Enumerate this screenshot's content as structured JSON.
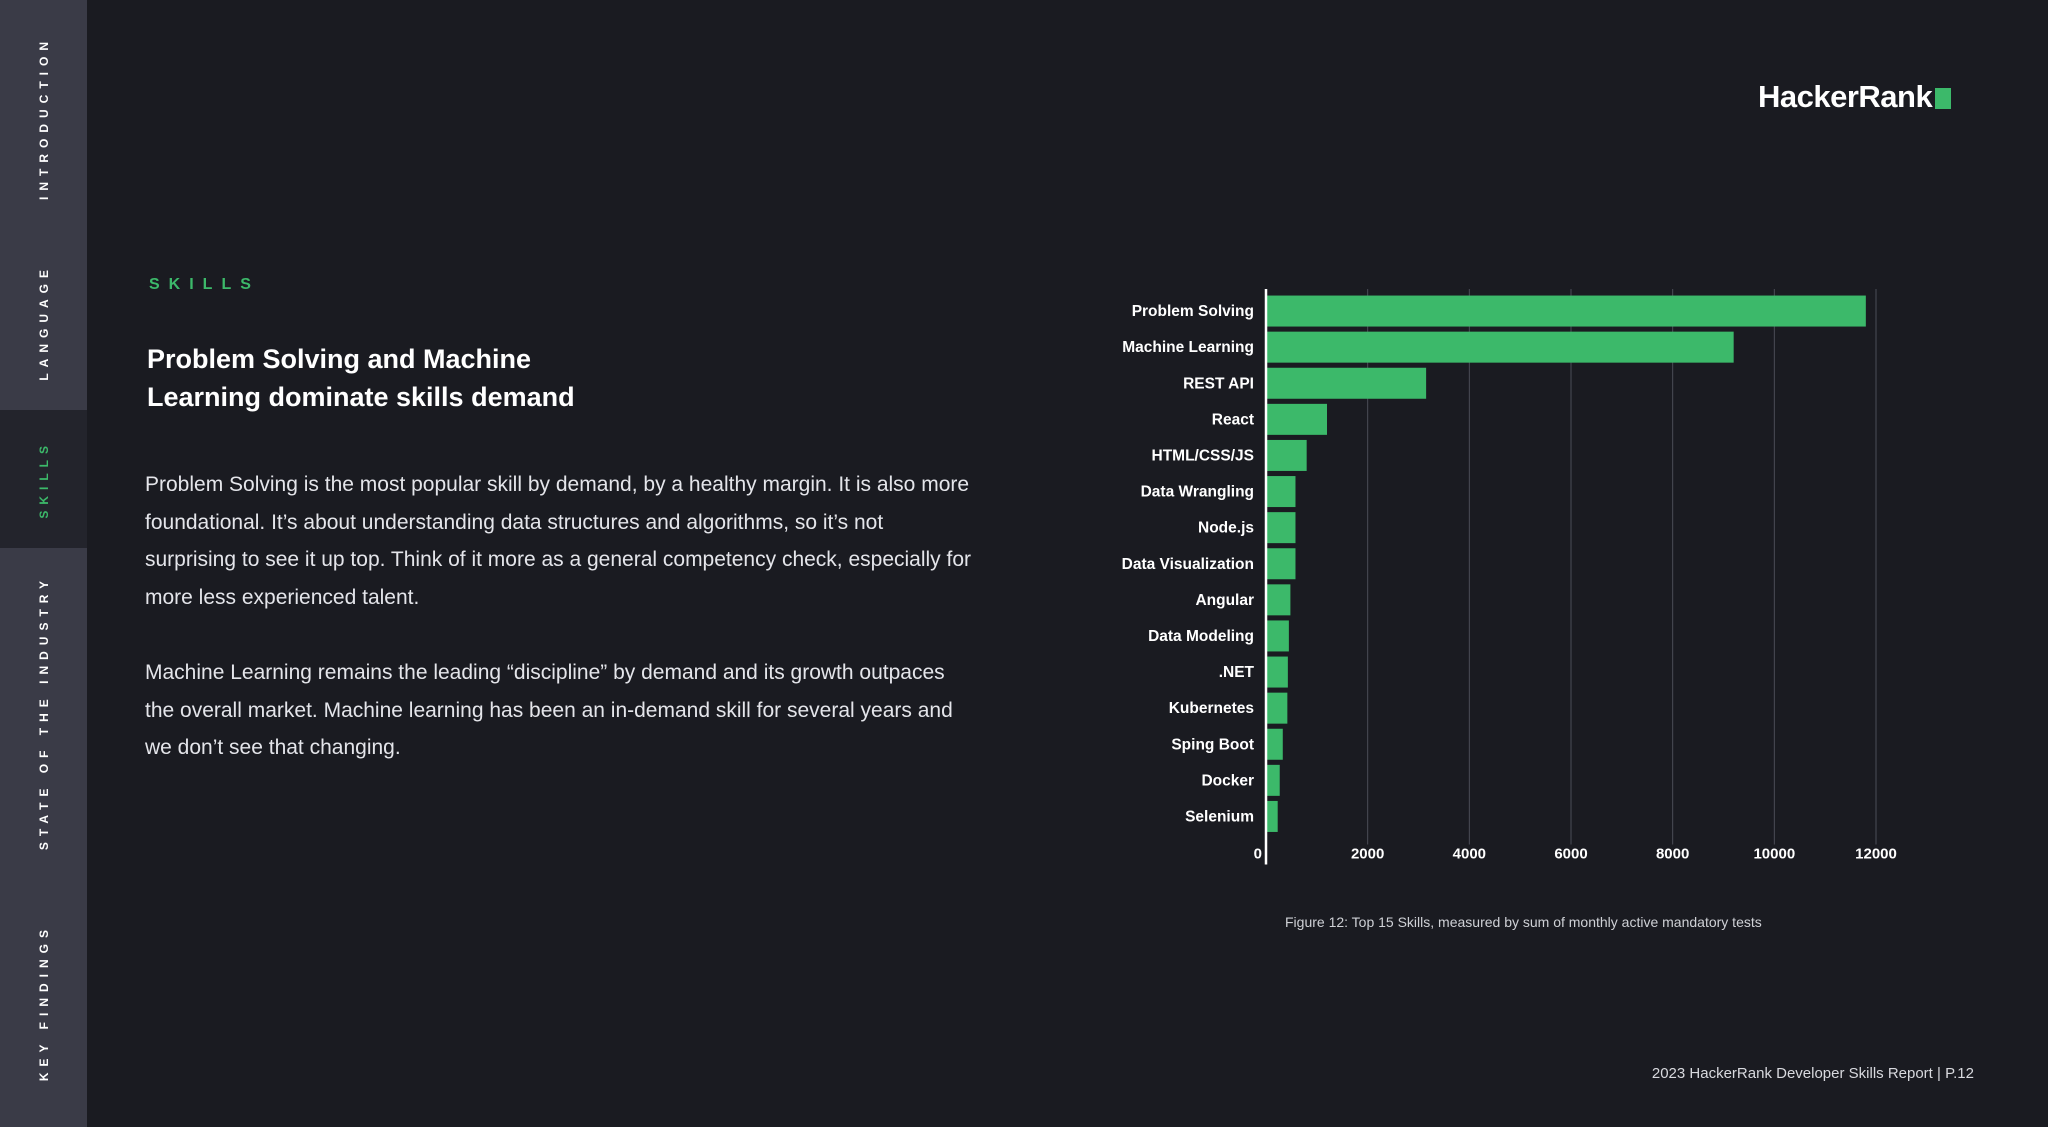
{
  "sidebar": {
    "items": [
      {
        "label": "INTRODUCTION"
      },
      {
        "label": "LANGUAGE"
      },
      {
        "label": "SKILLS"
      },
      {
        "label": "STATE OF THE INDUSTRY"
      },
      {
        "label": "KEY FINDINGS"
      }
    ]
  },
  "brand": {
    "logo_text": "HackerRank",
    "accent": "#3cb96a"
  },
  "section": {
    "tag": "SKILLS"
  },
  "heading": {
    "line1": "Problem Solving and Machine",
    "line2": "Learning dominate skills demand"
  },
  "body": {
    "para1": "Problem Solving is the most popular skill by demand, by a healthy margin. It is also more foundational. It’s about understanding data structures and algorithms, so it’s not surprising to see it up top. Think of it more as a general competency check, especially for more less experienced talent.",
    "para2": "Machine Learning remains the leading “discipline” by demand and its growth outpaces the overall market. Machine learning has been an in-demand skill for several years and we don’t see that changing."
  },
  "chart_data": {
    "type": "bar",
    "orientation": "horizontal",
    "categories": [
      "Problem Solving",
      "Machine Learning",
      "REST API",
      "React",
      "HTML/CSS/JS",
      "Data Wrangling",
      "Node.js",
      "Data Visualization",
      "Angular",
      "Data Modeling",
      ".NET",
      "Kubernetes",
      "Sping Boot",
      "Docker",
      "Selenium"
    ],
    "values": [
      11800,
      9200,
      3150,
      1200,
      800,
      580,
      580,
      580,
      480,
      450,
      430,
      420,
      330,
      270,
      230
    ],
    "xlim": [
      0,
      12000
    ],
    "xticks": [
      0,
      2000,
      4000,
      6000,
      8000,
      10000,
      12000
    ],
    "grid": true,
    "bar_color": "#3cb96a",
    "grid_color": "#4a4c56",
    "title": "",
    "xlabel": "",
    "ylabel": ""
  },
  "caption": "Figure 12: Top 15 Skills, measured by sum of monthly active mandatory tests",
  "footer": "2023 HackerRank Developer Skills Report | P.12"
}
